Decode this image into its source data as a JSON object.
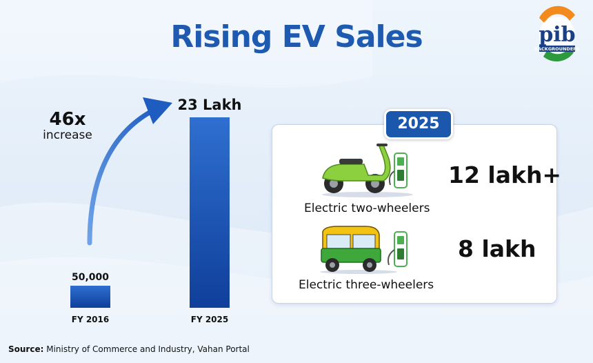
{
  "title": "Rising EV Sales",
  "logo": {
    "text": "pib",
    "subtext": "BACKGROUNDERS"
  },
  "chart_data": {
    "type": "bar",
    "categories": [
      "FY 2016",
      "FY 2025"
    ],
    "values": [
      50000,
      2300000
    ],
    "value_labels": [
      "50,000",
      "23 Lakh"
    ],
    "ylim": [
      0,
      2300000
    ],
    "grid": false,
    "annotation": {
      "value": "46x",
      "text": "increase"
    },
    "colors": {
      "bar_top": "#2f6fd0",
      "bar_bottom": "#0f3f9a"
    }
  },
  "panel": {
    "year": "2025",
    "rows": [
      {
        "label": "Electric two-wheelers",
        "value": "12 lakh+",
        "icon": "electric-scooter-icon"
      },
      {
        "label": "Electric three-wheelers",
        "value": "8 lakh",
        "icon": "electric-auto-rickshaw-icon"
      }
    ]
  },
  "source": {
    "prefix": "Source:",
    "text": "Ministry of Commerce and Industry, Vahan Portal"
  },
  "colors": {
    "title": "#1e5bb0",
    "accent": "#1b57ad"
  }
}
